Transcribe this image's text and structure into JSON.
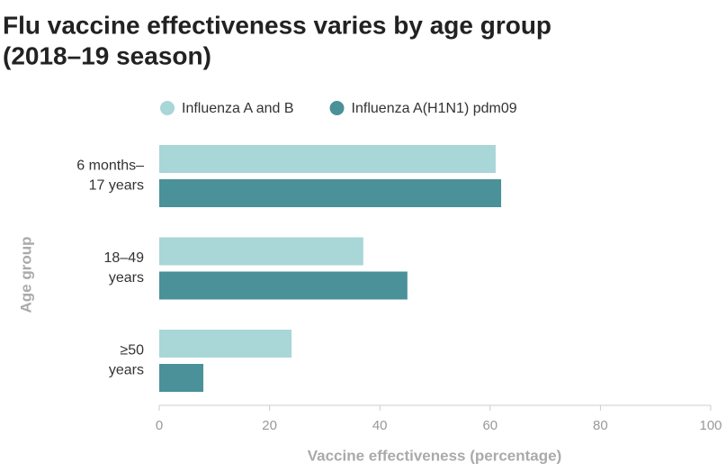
{
  "chart_data": {
    "type": "hbar",
    "title": [
      "Flu vaccine effectiveness varies by age group",
      "(2018–19 season)"
    ],
    "categories": [
      [
        "6 months–",
        "17 years"
      ],
      [
        "18–49",
        "years"
      ],
      [
        "≥50",
        "years"
      ]
    ],
    "series": [
      {
        "name": "Influenza A and B",
        "color": "#a9d6d7",
        "values": [
          61,
          37,
          24
        ]
      },
      {
        "name": "Influenza A(H1N1) pdm09",
        "color": "#4a9199",
        "values": [
          62,
          45,
          8
        ]
      }
    ],
    "xlim": [
      0,
      100
    ],
    "xticks": [
      0,
      20,
      40,
      60,
      80,
      100
    ],
    "xlabel": "Vaccine effectiveness (percentage)",
    "ylabel": "Age group",
    "legend": "top",
    "grid": false
  }
}
